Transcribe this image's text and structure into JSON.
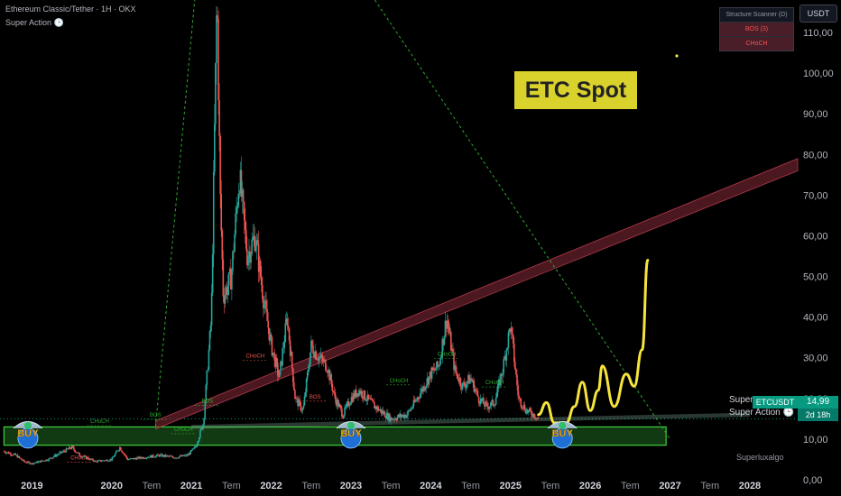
{
  "header": {
    "symbol_line": "Ethereum Classic/Tether · 1H · OKX",
    "indicator_line": "Super Action 🕒"
  },
  "scanner": {
    "title": "Structure Scanner (D)",
    "bos": "BOS (3)",
    "choch": "CHoCH"
  },
  "currency_button": "USDT",
  "title_badge": "ETC Spot",
  "watermark": "Superluxalgo",
  "price_tag": {
    "symbol": "ETCUSDT",
    "price": "14,99",
    "countdown": "2d 18h"
  },
  "overlay_labels": {
    "super_action_1": "Super",
    "super_action_2": "Super Action 🕒"
  },
  "colors": {
    "up": "#26a69a",
    "down": "#ef5350",
    "projection": "#f5e43b",
    "zone": "#3fd13f",
    "channel": "#8a2b3a",
    "trend": "#2ea82e"
  },
  "chart_data": {
    "type": "line",
    "y_axis": {
      "range": [
        0,
        118
      ],
      "ticks": [
        0,
        10,
        20,
        30,
        40,
        50,
        60,
        70,
        80,
        90,
        100,
        110
      ],
      "tick_labels": [
        "0,00",
        "10,00",
        "20,00",
        "30,00",
        "40,00",
        "50,00",
        "60,00",
        "70,00",
        "80,00",
        "90,00",
        "100,00",
        "110,00"
      ],
      "position": "right"
    },
    "x_axis": {
      "range": [
        2018.6,
        2028.6
      ],
      "ticks": [
        {
          "x": 2019.0,
          "label": "2019",
          "bold": true
        },
        {
          "x": 2020.0,
          "label": "2020",
          "bold": true
        },
        {
          "x": 2020.5,
          "label": "Tem",
          "bold": false
        },
        {
          "x": 2021.0,
          "label": "2021",
          "bold": true
        },
        {
          "x": 2021.5,
          "label": "Tem",
          "bold": false
        },
        {
          "x": 2022.0,
          "label": "2022",
          "bold": true
        },
        {
          "x": 2022.5,
          "label": "Tem",
          "bold": false
        },
        {
          "x": 2023.0,
          "label": "2023",
          "bold": true
        },
        {
          "x": 2023.5,
          "label": "Tem",
          "bold": false
        },
        {
          "x": 2024.0,
          "label": "2024",
          "bold": true
        },
        {
          "x": 2024.5,
          "label": "Tem",
          "bold": false
        },
        {
          "x": 2025.0,
          "label": "2025",
          "bold": true
        },
        {
          "x": 2025.5,
          "label": "Tem",
          "bold": false
        },
        {
          "x": 2026.0,
          "label": "2026",
          "bold": true
        },
        {
          "x": 2026.5,
          "label": "Tem",
          "bold": false
        },
        {
          "x": 2027.0,
          "label": "2027",
          "bold": true
        },
        {
          "x": 2027.5,
          "label": "Tem",
          "bold": false
        },
        {
          "x": 2028.0,
          "label": "2028",
          "bold": true
        }
      ]
    },
    "price_series": [
      [
        2018.65,
        7
      ],
      [
        2018.8,
        6
      ],
      [
        2018.9,
        4.5
      ],
      [
        2019.0,
        4
      ],
      [
        2019.2,
        5
      ],
      [
        2019.4,
        7
      ],
      [
        2019.5,
        8
      ],
      [
        2019.6,
        6
      ],
      [
        2019.8,
        4.5
      ],
      [
        2020.0,
        5
      ],
      [
        2020.1,
        8
      ],
      [
        2020.2,
        5
      ],
      [
        2020.4,
        5.5
      ],
      [
        2020.6,
        6
      ],
      [
        2020.8,
        5.5
      ],
      [
        2020.95,
        6
      ],
      [
        2021.05,
        8
      ],
      [
        2021.15,
        14
      ],
      [
        2021.25,
        40
      ],
      [
        2021.32,
        120
      ],
      [
        2021.36,
        70
      ],
      [
        2021.4,
        45
      ],
      [
        2021.5,
        50
      ],
      [
        2021.6,
        75
      ],
      [
        2021.7,
        55
      ],
      [
        2021.8,
        60
      ],
      [
        2021.9,
        45
      ],
      [
        2022.0,
        33
      ],
      [
        2022.1,
        25
      ],
      [
        2022.2,
        40
      ],
      [
        2022.3,
        20
      ],
      [
        2022.4,
        17
      ],
      [
        2022.5,
        33
      ],
      [
        2022.6,
        30
      ],
      [
        2022.7,
        28
      ],
      [
        2022.8,
        20
      ],
      [
        2022.9,
        16
      ],
      [
        2023.0,
        20
      ],
      [
        2023.1,
        22
      ],
      [
        2023.2,
        20
      ],
      [
        2023.3,
        18
      ],
      [
        2023.5,
        15
      ],
      [
        2023.7,
        16
      ],
      [
        2023.8,
        19
      ],
      [
        2024.0,
        26
      ],
      [
        2024.1,
        28
      ],
      [
        2024.2,
        40
      ],
      [
        2024.3,
        27
      ],
      [
        2024.4,
        23
      ],
      [
        2024.5,
        25
      ],
      [
        2024.6,
        20
      ],
      [
        2024.7,
        18
      ],
      [
        2024.8,
        19
      ],
      [
        2024.9,
        27
      ],
      [
        2025.0,
        38
      ],
      [
        2025.1,
        20
      ],
      [
        2025.2,
        17
      ],
      [
        2025.3,
        16
      ],
      [
        2025.35,
        15
      ]
    ],
    "projection_path": [
      [
        2025.35,
        16
      ],
      [
        2025.45,
        19
      ],
      [
        2025.55,
        14
      ],
      [
        2025.7,
        14
      ],
      [
        2025.8,
        18
      ],
      [
        2025.9,
        24
      ],
      [
        2026.0,
        17
      ],
      [
        2026.1,
        22
      ],
      [
        2026.15,
        28
      ],
      [
        2026.3,
        18
      ],
      [
        2026.45,
        26
      ],
      [
        2026.55,
        23
      ],
      [
        2026.65,
        32
      ],
      [
        2026.72,
        54
      ]
    ],
    "annotations": [
      {
        "x": 2020.55,
        "y": 15.5,
        "text": "BOS",
        "color": "#2ea82e"
      },
      {
        "x": 2021.2,
        "y": 19,
        "text": "BOS",
        "color": "#2ea82e"
      },
      {
        "x": 2021.8,
        "y": 30,
        "text": "CHoCH",
        "color": "#ef5350"
      },
      {
        "x": 2022.55,
        "y": 20,
        "text": "BOS",
        "color": "#ef5350"
      },
      {
        "x": 2020.9,
        "y": 12,
        "text": "CHoCH",
        "color": "#2ea82e"
      },
      {
        "x": 2019.85,
        "y": 14,
        "text": "CHoCH",
        "color": "#2ea82e"
      },
      {
        "x": 2019.6,
        "y": 5,
        "text": "CHoCH",
        "color": "#ef5350"
      },
      {
        "x": 2023.6,
        "y": 24,
        "text": "CHoCH",
        "color": "#2ea82e"
      },
      {
        "x": 2024.2,
        "y": 30.5,
        "text": "CHoCH",
        "color": "#2ea82e"
      },
      {
        "x": 2024.8,
        "y": 23.5,
        "text": "CHoCH",
        "color": "#2ea82e"
      }
    ],
    "buy_markers": [
      {
        "x": 2018.95,
        "y": 12,
        "text": "BUY"
      },
      {
        "x": 2023.0,
        "y": 12,
        "text": "BUY"
      },
      {
        "x": 2025.65,
        "y": 12,
        "text": "BUY"
      }
    ],
    "zone": {
      "x": [
        2018.65,
        2026.95
      ],
      "y": [
        8.5,
        13
      ]
    },
    "channel": {
      "x": [
        2020.55,
        2028.6
      ],
      "y_start": [
        12.5,
        14.5
      ],
      "y_end": [
        76,
        79
      ]
    },
    "trend_lines": [
      {
        "from": [
          2020.55,
          13
        ],
        "to": [
          2021.05,
          120
        ]
      },
      {
        "from": [
          2023.3,
          118
        ],
        "to": [
          2027.0,
          10
        ]
      }
    ],
    "current_price": 14.99
  }
}
